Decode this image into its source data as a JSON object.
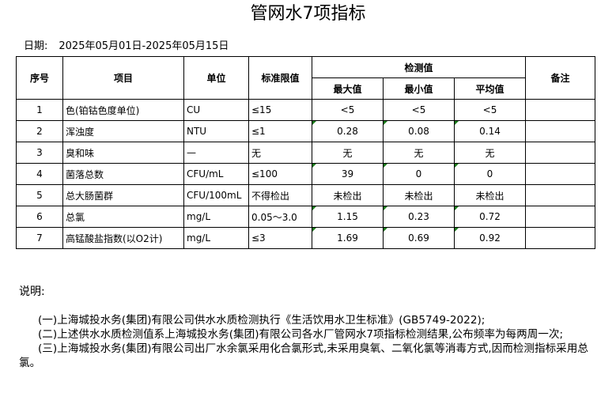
{
  "title": "管网水7项指标",
  "date": {
    "label": "日期:",
    "value": "2025年05月01日-2025年05月15日"
  },
  "table": {
    "headers": {
      "seq": "序号",
      "item": "项目",
      "unit": "单位",
      "limit": "标准限值",
      "measured": "检测值",
      "max": "最大值",
      "min": "最小值",
      "avg": "平均值",
      "remark": "备注"
    },
    "rows": [
      {
        "seq": "1",
        "item": "色(铂钴色度单位)",
        "unit": "CU",
        "limit": "≤15",
        "max": "<5",
        "min": "<5",
        "avg": "<5",
        "remark": ""
      },
      {
        "seq": "2",
        "item": "浑浊度",
        "unit": "NTU",
        "limit": "≤1",
        "max": "0.28",
        "min": "0.08",
        "avg": "0.14",
        "remark": ""
      },
      {
        "seq": "3",
        "item": "臭和味",
        "unit": "—",
        "limit": "无",
        "max": "无",
        "min": "无",
        "avg": "无",
        "remark": ""
      },
      {
        "seq": "4",
        "item": "菌落总数",
        "unit": "CFU/mL",
        "limit": "≤100",
        "max": "39",
        "min": "0",
        "avg": "0",
        "remark": ""
      },
      {
        "seq": "5",
        "item": "总大肠菌群",
        "unit": "CFU/100mL",
        "limit": "不得检出",
        "max": "未检出",
        "min": "未检出",
        "avg": "未检出",
        "remark": ""
      },
      {
        "seq": "6",
        "item": "总氯",
        "unit": "mg/L",
        "limit": "0.05～3.0",
        "max": "1.15",
        "min": "0.23",
        "avg": "0.72",
        "remark": ""
      },
      {
        "seq": "7",
        "item": "高锰酸盐指数(以O2计)",
        "unit": "mg/L",
        "limit": "≤3",
        "max": "1.69",
        "min": "0.69",
        "avg": "0.92",
        "remark": ""
      }
    ]
  },
  "notes": {
    "label": "说明:",
    "items": [
      "(一)上海城投水务(集团)有限公司供水水质检测执行《生活饮用水卫生标准》(GB5749-2022);",
      "(二)上述供水水质检测值系上海城投水务(集团)有限公司各水厂管网水7项指标检测结果,公布频率为每两周一次;",
      "(三)上海城投水务(集团)有限公司出厂水余氯采用化合氯形式,未采用臭氧、二氧化氯等消毒方式,因而检测指标采用总氯。"
    ]
  },
  "colors": {
    "text_number_marker": "#1a7a1a"
  }
}
